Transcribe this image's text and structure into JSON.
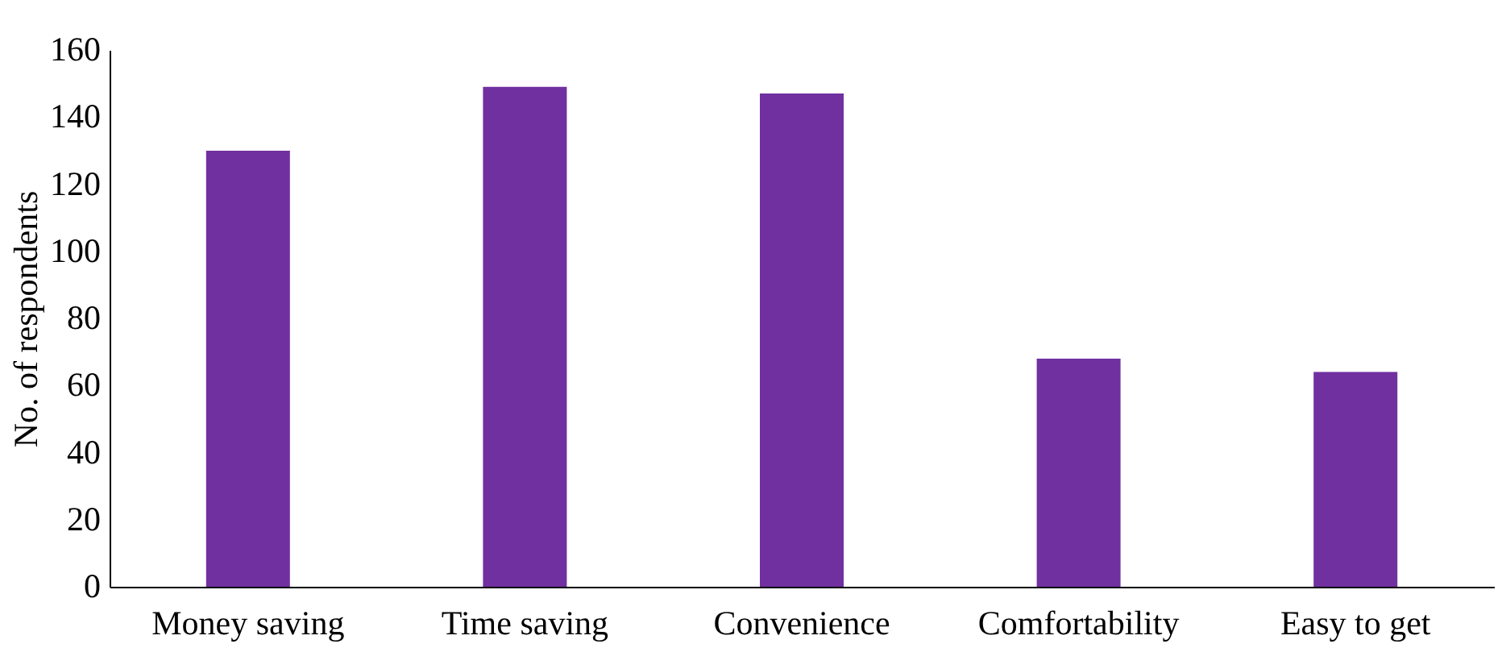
{
  "chart_data": {
    "type": "bar",
    "ylabel": "No. of respondents",
    "categories": [
      "Money saving",
      "Time saving",
      "Convenience",
      "Comfortability",
      "Easy to get"
    ],
    "values": [
      130,
      149,
      147,
      68,
      64
    ],
    "color": "#7030a0",
    "ylim": [
      0,
      160
    ],
    "yticks": [
      0,
      20,
      40,
      60,
      80,
      100,
      120,
      140,
      160
    ],
    "grid": false
  }
}
